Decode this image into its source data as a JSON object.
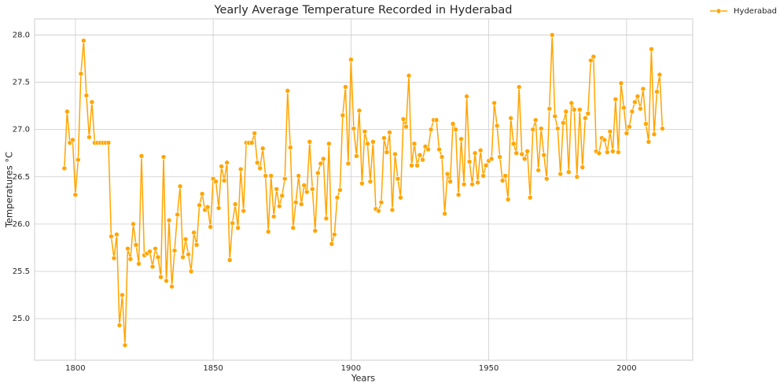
{
  "chart_data": {
    "type": "line",
    "title": "Yearly Average Temperature Recorded in Hyderabad",
    "xlabel": "Years",
    "ylabel": "Temperatures °C",
    "x": [
      1796,
      1797,
      1798,
      1799,
      1800,
      1801,
      1802,
      1803,
      1804,
      1805,
      1806,
      1807,
      1808,
      1809,
      1810,
      1811,
      1812,
      1813,
      1814,
      1815,
      1816,
      1817,
      1818,
      1819,
      1820,
      1821,
      1822,
      1823,
      1824,
      1825,
      1826,
      1827,
      1828,
      1829,
      1830,
      1831,
      1832,
      1833,
      1834,
      1835,
      1836,
      1837,
      1838,
      1839,
      1840,
      1841,
      1842,
      1843,
      1844,
      1845,
      1846,
      1847,
      1848,
      1849,
      1850,
      1851,
      1852,
      1853,
      1854,
      1855,
      1856,
      1857,
      1858,
      1859,
      1860,
      1861,
      1862,
      1863,
      1864,
      1865,
      1866,
      1867,
      1868,
      1869,
      1870,
      1871,
      1872,
      1873,
      1874,
      1875,
      1876,
      1877,
      1878,
      1879,
      1880,
      1881,
      1882,
      1883,
      1884,
      1885,
      1886,
      1887,
      1888,
      1889,
      1890,
      1891,
      1892,
      1893,
      1894,
      1895,
      1896,
      1897,
      1898,
      1899,
      1900,
      1901,
      1902,
      1903,
      1904,
      1905,
      1906,
      1907,
      1908,
      1909,
      1910,
      1911,
      1912,
      1913,
      1914,
      1915,
      1916,
      1917,
      1918,
      1919,
      1920,
      1921,
      1922,
      1923,
      1924,
      1925,
      1926,
      1927,
      1928,
      1929,
      1930,
      1931,
      1932,
      1933,
      1934,
      1935,
      1936,
      1937,
      1938,
      1939,
      1940,
      1941,
      1942,
      1943,
      1944,
      1945,
      1946,
      1947,
      1948,
      1949,
      1950,
      1951,
      1952,
      1953,
      1954,
      1955,
      1956,
      1957,
      1958,
      1959,
      1960,
      1961,
      1962,
      1963,
      1964,
      1965,
      1966,
      1967,
      1968,
      1969,
      1970,
      1971,
      1972,
      1973,
      1974,
      1975,
      1976,
      1977,
      1978,
      1979,
      1980,
      1981,
      1982,
      1983,
      1984,
      1985,
      1986,
      1987,
      1988,
      1989,
      1990,
      1991,
      1992,
      1993,
      1994,
      1995,
      1996,
      1997,
      1998,
      1999,
      2000,
      2001,
      2002,
      2003,
      2004,
      2005,
      2006,
      2007,
      2008,
      2009,
      2010,
      2011,
      2012,
      2013
    ],
    "series": [
      {
        "name": "Hyderabad",
        "color": "#ffa500",
        "values": [
          26.59,
          27.19,
          26.86,
          26.89,
          26.31,
          26.68,
          27.59,
          27.94,
          27.36,
          26.92,
          27.29,
          26.86,
          26.86,
          26.86,
          26.86,
          26.86,
          26.86,
          25.87,
          25.64,
          25.89,
          24.93,
          25.25,
          24.72,
          25.74,
          25.63,
          26.0,
          25.78,
          25.58,
          26.72,
          25.67,
          25.69,
          25.71,
          25.55,
          25.74,
          25.65,
          25.44,
          26.71,
          25.4,
          26.04,
          25.34,
          25.72,
          26.1,
          26.4,
          25.65,
          25.84,
          25.68,
          25.5,
          25.91,
          25.78,
          26.2,
          26.32,
          26.15,
          26.18,
          25.97,
          26.48,
          26.45,
          26.17,
          26.61,
          26.46,
          26.65,
          25.62,
          26.01,
          26.21,
          25.96,
          26.58,
          26.14,
          26.86,
          26.86,
          26.86,
          26.96,
          26.65,
          26.59,
          26.8,
          26.51,
          25.92,
          26.51,
          26.08,
          26.37,
          26.19,
          26.3,
          26.48,
          27.41,
          26.81,
          25.96,
          26.23,
          26.51,
          26.21,
          26.41,
          26.34,
          26.87,
          26.37,
          25.93,
          26.54,
          26.64,
          26.69,
          26.06,
          26.85,
          25.79,
          25.89,
          26.28,
          26.36,
          27.15,
          27.45,
          26.64,
          27.74,
          27.01,
          26.72,
          27.2,
          26.43,
          26.98,
          26.85,
          26.45,
          26.87,
          26.16,
          26.14,
          26.23,
          26.91,
          26.76,
          26.97,
          26.15,
          26.74,
          26.48,
          26.28,
          27.11,
          27.03,
          27.57,
          26.62,
          26.85,
          26.62,
          26.73,
          26.68,
          26.82,
          26.79,
          27.0,
          27.1,
          27.1,
          26.79,
          26.71,
          26.11,
          26.53,
          26.45,
          27.06,
          27.0,
          26.31,
          26.9,
          26.42,
          27.35,
          26.66,
          26.42,
          26.75,
          26.44,
          26.78,
          26.51,
          26.62,
          26.67,
          26.69,
          27.28,
          27.04,
          26.71,
          26.46,
          26.51,
          26.26,
          27.12,
          26.85,
          26.75,
          27.45,
          26.74,
          26.69,
          26.77,
          26.28,
          27.0,
          27.1,
          26.57,
          27.01,
          26.73,
          26.48,
          27.22,
          28.0,
          27.14,
          27.01,
          26.53,
          27.07,
          27.19,
          26.55,
          27.28,
          27.21,
          26.5,
          27.21,
          26.6,
          27.12,
          27.17,
          27.73,
          27.77,
          26.77,
          26.75,
          26.91,
          26.89,
          26.76,
          26.98,
          26.77,
          27.32,
          26.76,
          27.49,
          27.23,
          26.96,
          27.03,
          27.19,
          27.29,
          27.35,
          27.22,
          27.43,
          27.06,
          26.87,
          27.85,
          26.95,
          27.4,
          27.58,
          27.01
        ]
      }
    ],
    "xlim": [
      1785.2,
      2024
    ],
    "ylim": [
      24.56,
      28.17
    ],
    "xticks": [
      1800,
      1850,
      1900,
      1950,
      2000
    ],
    "yticks": [
      {
        "value": 25,
        "label": "25.0"
      },
      25.5,
      {
        "value": 26,
        "label": "26.0"
      },
      26.5,
      {
        "value": 27,
        "label": "27.0"
      },
      27.5,
      {
        "value": 28,
        "label": "28.0"
      }
    ],
    "grid": true,
    "markers": true,
    "legend": "outside upper right"
  }
}
